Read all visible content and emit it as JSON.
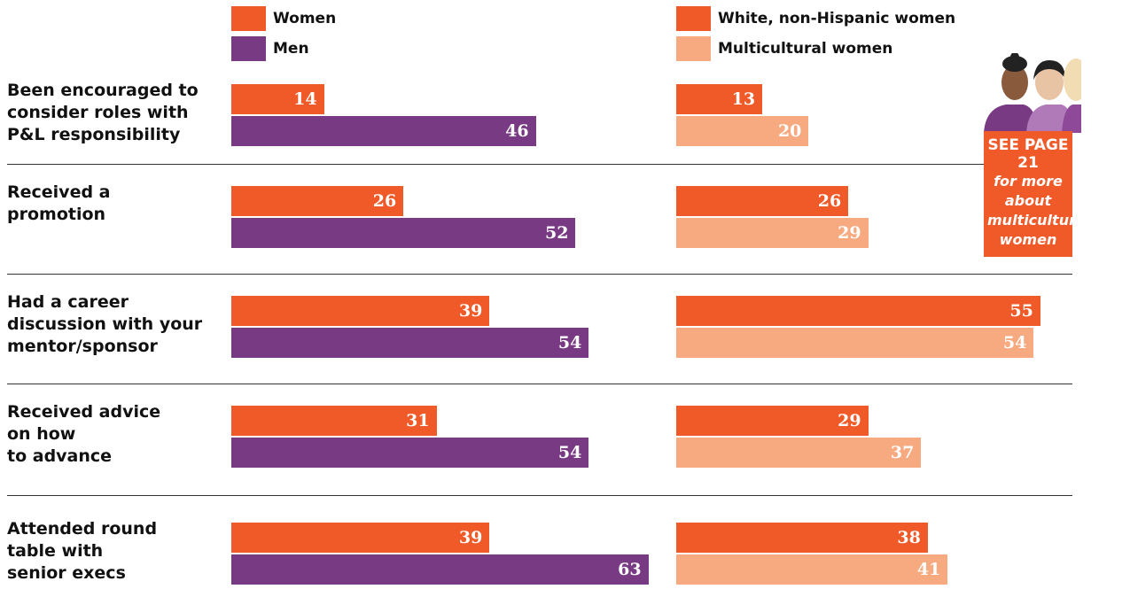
{
  "chart_data": {
    "type": "bar",
    "orientation": "horizontal",
    "categories": [
      "Been encouraged to\nconsider roles with\nP&L responsibility",
      "Received a\npromotion",
      "Had a career\ndiscussion with your\nmentor/sponsor",
      "Received advice\non how\nto advance",
      "Attended round\ntable with\nsenior execs"
    ],
    "series": [
      {
        "name": "Women",
        "color": "#f05a28",
        "panel": 0,
        "values": [
          14,
          26,
          39,
          31,
          39
        ]
      },
      {
        "name": "Men",
        "color": "#793a84",
        "panel": 0,
        "values": [
          46,
          52,
          54,
          54,
          63
        ]
      },
      {
        "name": "White, non-Hispanic women",
        "color": "#f05a28",
        "panel": 1,
        "values": [
          13,
          26,
          55,
          29,
          38
        ]
      },
      {
        "name": "Multicultural women",
        "color": "#f7a97f",
        "panel": 1,
        "values": [
          20,
          29,
          54,
          37,
          41
        ]
      }
    ]
  },
  "callout": {
    "title": "SEE PAGE 21",
    "text": "for more about multicultural women"
  }
}
